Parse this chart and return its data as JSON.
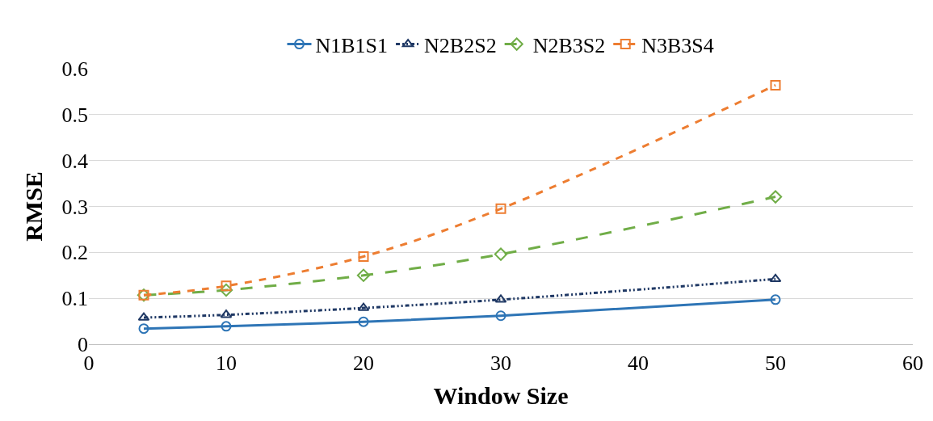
{
  "chart_data": {
    "type": "line",
    "xlabel": "Window Size",
    "ylabel": "RMSE",
    "x": [
      4,
      10,
      20,
      30,
      50
    ],
    "series": [
      {
        "name": "N1B1S1",
        "color": "#2e75b6",
        "marker": "circle",
        "line_style": "solid",
        "values": [
          0.034,
          0.039,
          0.049,
          0.062,
          0.097
        ]
      },
      {
        "name": "N2B2S2",
        "color": "#1f3864",
        "marker": "triangle",
        "line_style": "dashdot",
        "values": [
          0.058,
          0.064,
          0.079,
          0.097,
          0.142
        ]
      },
      {
        "name": "N2B3S2",
        "color": "#70ad47",
        "marker": "diamond",
        "line_style": "longdash",
        "values": [
          0.107,
          0.118,
          0.15,
          0.196,
          0.321
        ]
      },
      {
        "name": "N3B3S4",
        "color": "#ed7d31",
        "marker": "square",
        "line_style": "dashed",
        "values": [
          0.107,
          0.127,
          0.191,
          0.295,
          0.564
        ]
      }
    ],
    "xlim": [
      0,
      60
    ],
    "xticks": [
      0,
      10,
      20,
      30,
      40,
      50,
      60
    ],
    "ylim": [
      0,
      0.6
    ],
    "yticks": [
      0,
      0.1,
      0.2,
      0.3,
      0.4,
      0.5,
      0.6
    ],
    "grid": "y",
    "legend": "top"
  }
}
